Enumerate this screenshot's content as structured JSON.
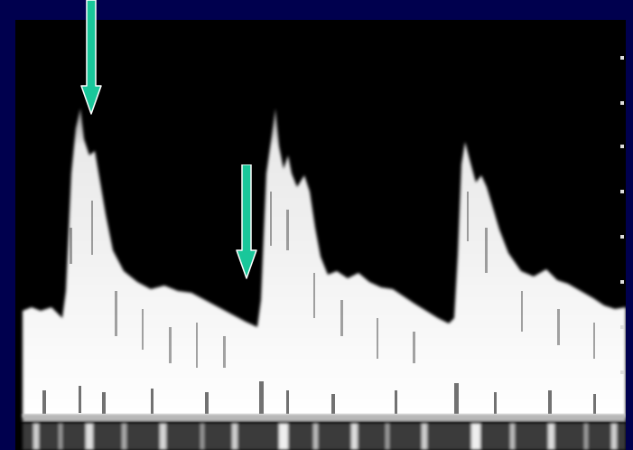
{
  "image": {
    "background_color": "#00004e",
    "panel_color": "#000000",
    "signal_color": "#f0f0f0",
    "arrow_color": "#19c79a",
    "arrow_outline_color": "#ffffff",
    "annotations": [
      {
        "icon": "down-arrow-icon"
      },
      {
        "icon": "down-arrow-icon"
      }
    ]
  }
}
